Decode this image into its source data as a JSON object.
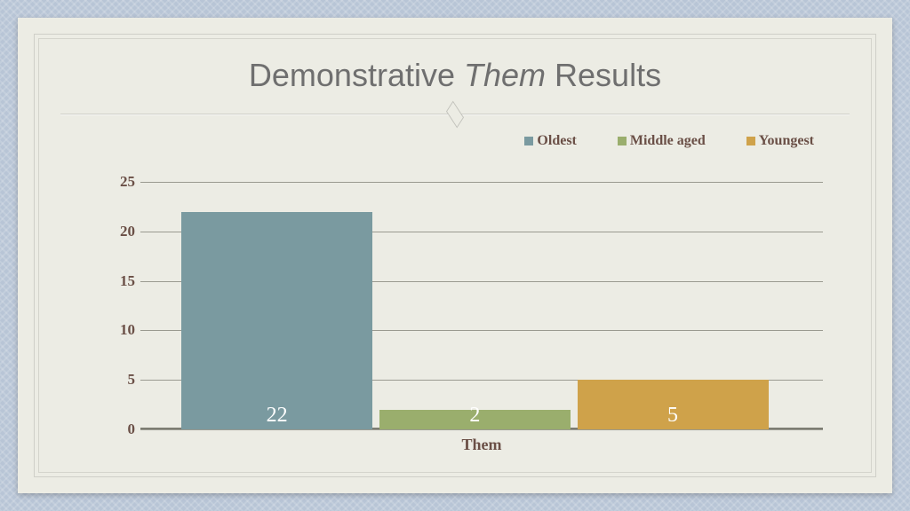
{
  "title_pre": "Demonstrative ",
  "title_italic": "Them",
  "title_post": " Results",
  "title_fontsize": 36,
  "title_color": "#6f6f6f",
  "legend": [
    {
      "label": "Oldest",
      "color": "#7a9aa0"
    },
    {
      "label": "Middle aged",
      "color": "#9aae6d"
    },
    {
      "label": "Youngest",
      "color": "#cfa24a"
    }
  ],
  "legend_text_color": "#6a4f46",
  "legend_fontsize": 16,
  "chart": {
    "type": "bar",
    "xlabel": "Them",
    "xlabel_color": "#6a4f46",
    "xlabel_fontsize": 18,
    "ylim": [
      0,
      26
    ],
    "yticks": [
      0,
      5,
      10,
      15,
      20,
      25
    ],
    "ytick_color": "#6a4f46",
    "ytick_fontsize": 17,
    "grid_color": "#9a9a90",
    "baseline_color": "#7d7d72",
    "background_color": "#ecece4",
    "bars": [
      {
        "name": "Oldest",
        "value": 22,
        "color": "#7a9aa0",
        "label_color": "#ffffff"
      },
      {
        "name": "Middle aged",
        "value": 2,
        "color": "#9aae6d",
        "label_color": "#ffffff"
      },
      {
        "name": "Youngest",
        "value": 5,
        "color": "#cfa24a",
        "label_color": "#ffffff"
      }
    ],
    "bar_label_fontsize": 24,
    "bar_width_pct": 28,
    "bar_gap_pct": 1,
    "bar_group_left_pct": 6
  },
  "frame_outer_bg": "#b8c5d6",
  "panel_bg": "#ecece4"
}
